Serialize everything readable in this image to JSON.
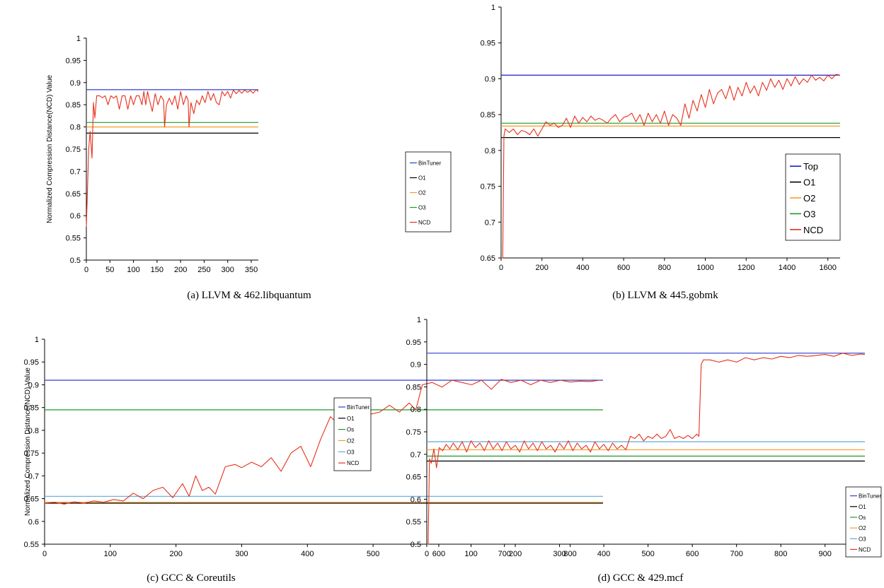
{
  "colors": {
    "BinTuner": "#2f3fd0",
    "Top": "#1f1fcc",
    "O1": "#000000",
    "O2": "#f59c2a",
    "O3": "#1f9a2a",
    "Os": "#1f9a2a",
    "O3_light": "#5fa8d8",
    "NCD": "#e8301a"
  },
  "chart_data": [
    {
      "id": "a",
      "type": "line",
      "caption": "(a)  LLVM & 462.libquantum",
      "ylabel": "Normalized Compression Distance(NCD) Value",
      "xlim": [
        0,
        365
      ],
      "ylim": [
        0.5,
        1.0
      ],
      "xticks": [
        "0",
        "50",
        "100",
        "150",
        "200",
        "250",
        "300",
        "350"
      ],
      "yticks": [
        "0.5",
        "0.55",
        "0.6",
        "0.65",
        "0.7",
        "0.75",
        "0.8",
        "0.85",
        "0.9",
        "0.95",
        "1"
      ],
      "legend_position": "right",
      "legend_size": "small",
      "hlines": [
        {
          "name": "BinTuner",
          "y": 0.884,
          "color": "BinTuner"
        },
        {
          "name": "O1",
          "y": 0.786,
          "color": "O1"
        },
        {
          "name": "O2",
          "y": 0.8,
          "color": "O2"
        },
        {
          "name": "O3",
          "y": 0.81,
          "color": "O3"
        }
      ],
      "legend": [
        "BinTuner",
        "O1",
        "O2",
        "O3",
        "NCD"
      ],
      "series": [
        {
          "name": "NCD",
          "color": "NCD",
          "x": [
            0,
            3,
            5,
            8,
            12,
            15,
            18,
            22,
            28,
            34,
            40,
            46,
            52,
            58,
            64,
            70,
            76,
            82,
            88,
            94,
            100,
            106,
            112,
            118,
            122,
            126,
            130,
            134,
            140,
            146,
            152,
            158,
            164,
            166,
            170,
            176,
            182,
            188,
            194,
            200,
            206,
            212,
            216,
            218,
            222,
            228,
            234,
            240,
            246,
            252,
            258,
            264,
            270,
            276,
            282,
            288,
            294,
            300,
            306,
            312,
            318,
            324,
            330,
            336,
            342,
            348,
            354,
            360,
            365
          ],
          "y": [
            0.575,
            0.68,
            0.75,
            0.79,
            0.73,
            0.855,
            0.82,
            0.87,
            0.87,
            0.866,
            0.87,
            0.85,
            0.87,
            0.865,
            0.87,
            0.84,
            0.87,
            0.87,
            0.84,
            0.87,
            0.85,
            0.87,
            0.87,
            0.85,
            0.88,
            0.85,
            0.88,
            0.86,
            0.835,
            0.875,
            0.85,
            0.87,
            0.86,
            0.8,
            0.85,
            0.865,
            0.85,
            0.87,
            0.84,
            0.88,
            0.85,
            0.87,
            0.86,
            0.8,
            0.855,
            0.83,
            0.86,
            0.85,
            0.87,
            0.855,
            0.88,
            0.86,
            0.875,
            0.855,
            0.85,
            0.88,
            0.87,
            0.88,
            0.865,
            0.883,
            0.875,
            0.882,
            0.876,
            0.883,
            0.878,
            0.882,
            0.876,
            0.884,
            0.88
          ]
        }
      ]
    },
    {
      "id": "b",
      "type": "line",
      "caption": "(b)  LLVM & 445.gobmk",
      "ylabel": "",
      "xlim": [
        0,
        1660
      ],
      "ylim": [
        0.65,
        1.0
      ],
      "xticks": [
        "0",
        "200",
        "400",
        "600",
        "800",
        "1000",
        "1200",
        "1400",
        "1600"
      ],
      "yticks": [
        "0.65",
        "0.7",
        "0.75",
        "0.8",
        "0.85",
        "0.9",
        "0.95",
        "1"
      ],
      "legend_position": "right",
      "legend_size": "large",
      "hlines": [
        {
          "name": "Top",
          "y": 0.905,
          "color": "Top"
        },
        {
          "name": "O1",
          "y": 0.818,
          "color": "O1"
        },
        {
          "name": "O2",
          "y": 0.834,
          "color": "O2"
        },
        {
          "name": "O3",
          "y": 0.838,
          "color": "O3"
        }
      ],
      "legend": [
        "Top",
        "O1",
        "O2",
        "O3",
        "NCD"
      ],
      "series": [
        {
          "name": "NCD",
          "color": "NCD",
          "x": [
            0,
            8,
            14,
            20,
            40,
            60,
            80,
            100,
            120,
            140,
            160,
            180,
            200,
            220,
            240,
            260,
            280,
            300,
            320,
            340,
            360,
            380,
            400,
            420,
            440,
            460,
            480,
            500,
            520,
            540,
            560,
            580,
            600,
            620,
            640,
            660,
            680,
            700,
            720,
            740,
            760,
            780,
            800,
            820,
            840,
            860,
            880,
            900,
            920,
            940,
            960,
            980,
            1000,
            1020,
            1040,
            1060,
            1080,
            1100,
            1120,
            1140,
            1160,
            1180,
            1200,
            1220,
            1240,
            1260,
            1280,
            1300,
            1320,
            1340,
            1360,
            1380,
            1400,
            1420,
            1440,
            1460,
            1480,
            1500,
            1520,
            1540,
            1560,
            1580,
            1600,
            1620,
            1640,
            1660
          ],
          "y": [
            0.65,
            0.65,
            0.82,
            0.83,
            0.825,
            0.83,
            0.822,
            0.828,
            0.826,
            0.822,
            0.83,
            0.82,
            0.83,
            0.84,
            0.835,
            0.838,
            0.832,
            0.835,
            0.845,
            0.832,
            0.848,
            0.838,
            0.846,
            0.84,
            0.848,
            0.842,
            0.845,
            0.842,
            0.838,
            0.845,
            0.85,
            0.84,
            0.846,
            0.848,
            0.852,
            0.84,
            0.85,
            0.835,
            0.852,
            0.84,
            0.85,
            0.838,
            0.855,
            0.835,
            0.85,
            0.845,
            0.835,
            0.865,
            0.845,
            0.87,
            0.855,
            0.878,
            0.86,
            0.885,
            0.865,
            0.88,
            0.885,
            0.872,
            0.89,
            0.87,
            0.888,
            0.876,
            0.895,
            0.88,
            0.89,
            0.876,
            0.895,
            0.884,
            0.9,
            0.888,
            0.898,
            0.885,
            0.9,
            0.89,
            0.903,
            0.892,
            0.9,
            0.895,
            0.905,
            0.898,
            0.902,
            0.897,
            0.905,
            0.9,
            0.906,
            0.905
          ]
        }
      ]
    },
    {
      "id": "c",
      "type": "line",
      "caption": "(c)  GCC & Coreutils",
      "ylabel": "Normalized Compression Distance(NCD) Value",
      "xlim": [
        0,
        850
      ],
      "ylim": [
        0.55,
        1.0
      ],
      "xticks": [
        "0",
        "100",
        "200",
        "300",
        "400",
        "500",
        "600",
        "700",
        "800"
      ],
      "yticks": [
        "0.55",
        "0.6",
        "0.65",
        "0.7",
        "0.75",
        "0.8",
        "0.85",
        "0.9",
        "0.95",
        "1"
      ],
      "legend_position": "right",
      "legend_size": "small",
      "hlines": [
        {
          "name": "BinTuner",
          "y": 0.91,
          "color": "BinTuner"
        },
        {
          "name": "O1",
          "y": 0.64,
          "color": "O1"
        },
        {
          "name": "Os",
          "y": 0.845,
          "color": "Os"
        },
        {
          "name": "O2",
          "y": 0.642,
          "color": "O2"
        },
        {
          "name": "O3",
          "y": 0.655,
          "color": "O3_light"
        }
      ],
      "legend": [
        "BinTuner",
        "O1",
        "Os",
        "O2",
        "O3",
        "NCD"
      ],
      "series": [
        {
          "name": "NCD",
          "color": "NCD",
          "x": [
            0,
            15,
            30,
            45,
            60,
            75,
            90,
            105,
            120,
            135,
            150,
            165,
            180,
            195,
            210,
            220,
            230,
            240,
            250,
            260,
            275,
            290,
            300,
            315,
            330,
            345,
            360,
            375,
            390,
            405,
            420,
            435,
            450,
            465,
            480,
            495,
            510,
            525,
            540,
            555,
            565,
            575,
            590,
            605,
            620,
            635,
            650,
            665,
            680,
            695,
            710,
            725,
            740,
            755,
            770,
            785,
            800,
            815,
            830,
            845
          ],
          "y": [
            0.64,
            0.642,
            0.638,
            0.643,
            0.64,
            0.645,
            0.642,
            0.648,
            0.645,
            0.662,
            0.65,
            0.668,
            0.675,
            0.652,
            0.683,
            0.655,
            0.7,
            0.668,
            0.675,
            0.66,
            0.72,
            0.725,
            0.718,
            0.73,
            0.72,
            0.74,
            0.71,
            0.75,
            0.765,
            0.72,
            0.78,
            0.83,
            0.81,
            0.85,
            0.82,
            0.835,
            0.84,
            0.855,
            0.84,
            0.86,
            0.845,
            0.9,
            0.905,
            0.895,
            0.91,
            0.905,
            0.9,
            0.91,
            0.89,
            0.912,
            0.905,
            0.91,
            0.9,
            0.91,
            0.905,
            0.91,
            0.906,
            0.908,
            0.907,
            0.91
          ]
        }
      ]
    },
    {
      "id": "d",
      "type": "line",
      "caption": "(d)  GCC & 429.mcf",
      "ylabel": "",
      "xlim": [
        0,
        990
      ],
      "ylim": [
        0.5,
        1.0
      ],
      "xticks": [
        "0",
        "100",
        "200",
        "300",
        "400",
        "500",
        "600",
        "700",
        "800",
        "900"
      ],
      "yticks": [
        "0.5",
        "0.55",
        "0.6",
        "0.65",
        "0.7",
        "0.75",
        "0.8",
        "0.85",
        "0.9",
        "0.95",
        "1"
      ],
      "legend_position": "bottom-right",
      "legend_size": "small",
      "hlines": [
        {
          "name": "BinTuner",
          "y": 0.925,
          "color": "BinTuner"
        },
        {
          "name": "O1",
          "y": 0.685,
          "color": "O1"
        },
        {
          "name": "Os",
          "y": 0.696,
          "color": "Os"
        },
        {
          "name": "O2",
          "y": 0.71,
          "color": "O2"
        },
        {
          "name": "O3",
          "y": 0.728,
          "color": "O3_light"
        }
      ],
      "legend": [
        "BinTuner",
        "O1",
        "Os",
        "O2",
        "O3",
        "NCD"
      ],
      "series": [
        {
          "name": "NCD",
          "color": "NCD",
          "x": [
            0,
            3,
            6,
            10,
            16,
            22,
            28,
            36,
            44,
            52,
            60,
            70,
            80,
            90,
            100,
            110,
            120,
            130,
            140,
            150,
            160,
            170,
            180,
            190,
            200,
            210,
            220,
            230,
            240,
            250,
            260,
            270,
            280,
            290,
            300,
            310,
            320,
            330,
            340,
            350,
            360,
            370,
            380,
            390,
            400,
            410,
            420,
            430,
            440,
            450,
            460,
            470,
            480,
            490,
            500,
            510,
            520,
            530,
            540,
            550,
            560,
            570,
            580,
            590,
            600,
            610,
            615,
            620,
            625,
            640,
            660,
            680,
            700,
            720,
            740,
            760,
            780,
            800,
            820,
            840,
            860,
            880,
            900,
            920,
            940,
            960,
            980,
            990
          ],
          "y": [
            0.5,
            0.5,
            0.69,
            0.68,
            0.712,
            0.67,
            0.715,
            0.708,
            0.722,
            0.712,
            0.725,
            0.71,
            0.728,
            0.705,
            0.73,
            0.715,
            0.725,
            0.708,
            0.73,
            0.712,
            0.725,
            0.708,
            0.728,
            0.712,
            0.72,
            0.705,
            0.73,
            0.712,
            0.725,
            0.708,
            0.728,
            0.712,
            0.72,
            0.705,
            0.725,
            0.712,
            0.73,
            0.708,
            0.725,
            0.712,
            0.72,
            0.705,
            0.728,
            0.712,
            0.722,
            0.708,
            0.725,
            0.712,
            0.72,
            0.71,
            0.74,
            0.735,
            0.745,
            0.73,
            0.74,
            0.735,
            0.745,
            0.735,
            0.74,
            0.755,
            0.735,
            0.74,
            0.735,
            0.742,
            0.735,
            0.745,
            0.74,
            0.9,
            0.91,
            0.91,
            0.905,
            0.91,
            0.905,
            0.915,
            0.91,
            0.915,
            0.912,
            0.918,
            0.915,
            0.92,
            0.918,
            0.92,
            0.922,
            0.918,
            0.925,
            0.92,
            0.923,
            0.922
          ]
        }
      ]
    }
  ]
}
